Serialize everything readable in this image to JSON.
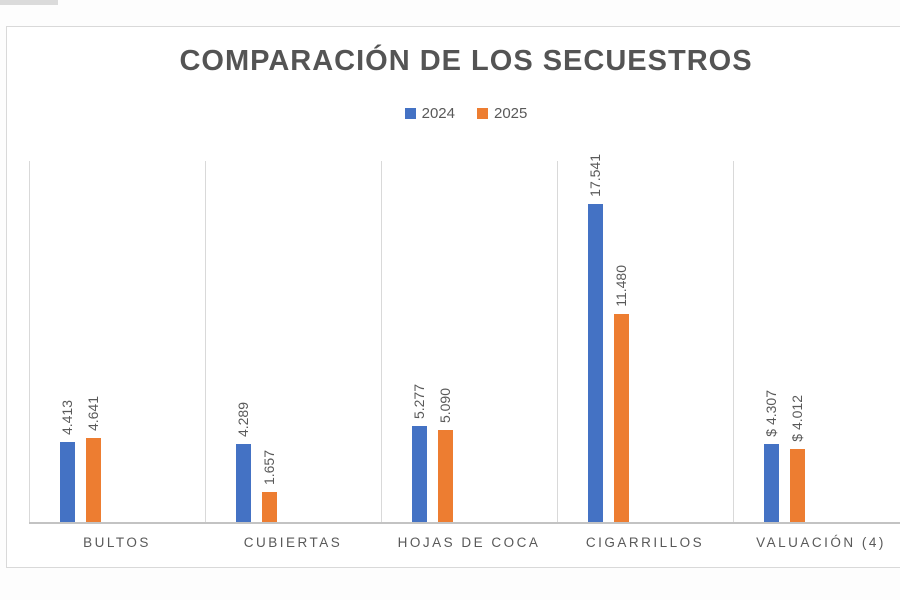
{
  "chart_data": {
    "type": "bar",
    "title": "COMPARACIÓN DE LOS SECUESTROS",
    "categories": [
      "BULTOS",
      "CUBIERTAS",
      "HOJAS DE COCA",
      "CIGARRILLOS",
      "VALUACIÓN (4)"
    ],
    "series": [
      {
        "name": "2024",
        "color": "#4472C4",
        "values": [
          4413,
          4289,
          5277,
          17541,
          4307
        ],
        "labels": [
          "4.413",
          "4.289",
          "5.277",
          "17.541",
          "$ 4.307"
        ]
      },
      {
        "name": "2025",
        "color": "#ED7D31",
        "values": [
          4641,
          1657,
          5090,
          11480,
          4012
        ],
        "labels": [
          "4.641",
          "1.657",
          "5.090",
          "11.480",
          "$ 4.012"
        ]
      }
    ],
    "xlabel": "",
    "ylabel": "",
    "ylim": [
      0,
      20000
    ],
    "grid": "vertical-category-separators",
    "legend_position": "top",
    "data_label_orientation": "rotated-90"
  }
}
